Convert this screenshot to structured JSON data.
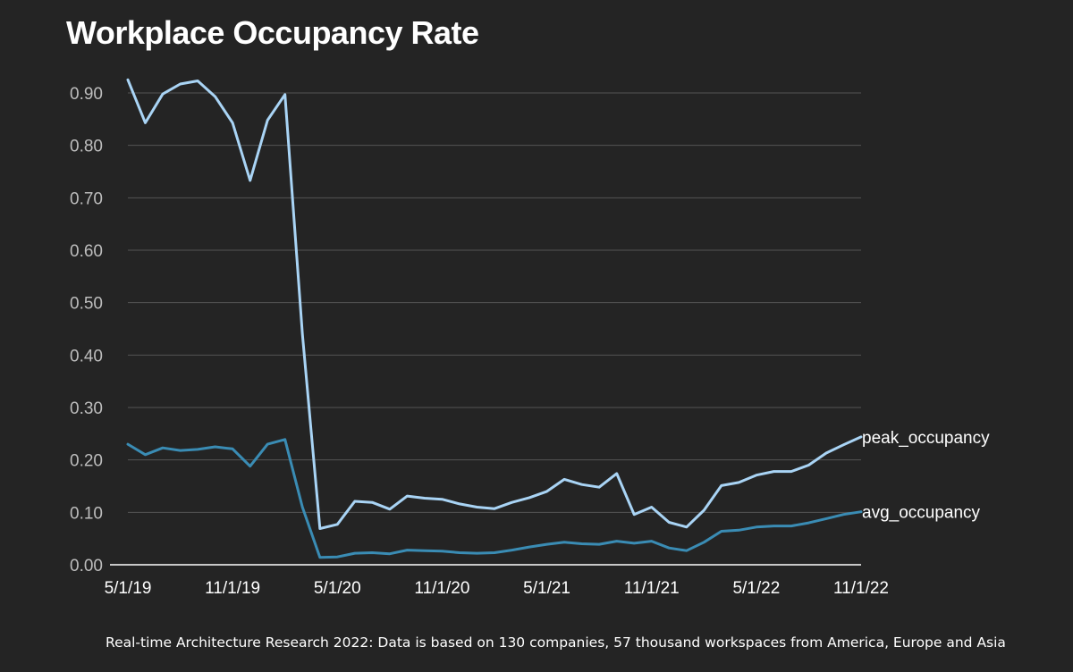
{
  "title": "Workplace Occupancy Rate",
  "source": "Real-time Architecture Research 2022: Data is based on 130 companies, 57 thousand workspaces from America, Europe and Asia",
  "colors": {
    "background": "#242424",
    "peak": "#a9d4f5",
    "avg": "#3a8cb4",
    "grid": "#555555"
  },
  "chart_data": {
    "type": "line",
    "title": "Workplace Occupancy Rate",
    "xlabel": "",
    "ylabel": "",
    "x": [
      "2019-05-01",
      "2019-06-01",
      "2019-07-01",
      "2019-08-01",
      "2019-09-01",
      "2019-10-01",
      "2019-11-01",
      "2019-12-01",
      "2020-01-01",
      "2020-02-01",
      "2020-03-01",
      "2020-04-01",
      "2020-05-01",
      "2020-06-01",
      "2020-07-01",
      "2020-08-01",
      "2020-09-01",
      "2020-10-01",
      "2020-11-01",
      "2020-12-01",
      "2021-01-01",
      "2021-02-01",
      "2021-03-01",
      "2021-04-01",
      "2021-05-01",
      "2021-06-01",
      "2021-07-01",
      "2021-08-01",
      "2021-09-01",
      "2021-10-01",
      "2021-11-01",
      "2021-12-01",
      "2022-01-01",
      "2022-02-01",
      "2022-03-01",
      "2022-04-01",
      "2022-05-01",
      "2022-06-01",
      "2022-07-01",
      "2022-08-01",
      "2022-09-01",
      "2022-10-01",
      "2022-11-01"
    ],
    "x_ticks": [
      "5/1/19",
      "11/1/19",
      "5/1/20",
      "11/1/20",
      "5/1/21",
      "11/1/21",
      "5/1/22",
      "11/1/22"
    ],
    "y_ticks": [
      "0.00",
      "0.10",
      "0.20",
      "0.30",
      "0.40",
      "0.50",
      "0.60",
      "0.70",
      "0.80",
      "0.90"
    ],
    "ylim": [
      0,
      0.9
    ],
    "grid": true,
    "legend": "inline at line ends",
    "series": [
      {
        "name": "peak_occupancy",
        "color": "#a9d4f5",
        "values": [
          0.925,
          0.843,
          0.898,
          0.917,
          0.923,
          0.893,
          0.843,
          0.733,
          0.848,
          0.897,
          0.44,
          0.069,
          0.077,
          0.121,
          0.119,
          0.106,
          0.131,
          0.127,
          0.125,
          0.116,
          0.11,
          0.107,
          0.119,
          0.128,
          0.14,
          0.163,
          0.153,
          0.148,
          0.174,
          0.096,
          0.11,
          0.081,
          0.072,
          0.104,
          0.151,
          0.157,
          0.171,
          0.178,
          0.178,
          0.19,
          0.213,
          0.229,
          0.244
        ]
      },
      {
        "name": "avg_occupancy",
        "color": "#3a8cb4",
        "values": [
          0.23,
          0.21,
          0.223,
          0.218,
          0.22,
          0.225,
          0.221,
          0.188,
          0.23,
          0.239,
          0.11,
          0.014,
          0.015,
          0.022,
          0.023,
          0.021,
          0.028,
          0.027,
          0.026,
          0.023,
          0.022,
          0.023,
          0.028,
          0.034,
          0.039,
          0.043,
          0.04,
          0.039,
          0.045,
          0.041,
          0.045,
          0.032,
          0.027,
          0.043,
          0.064,
          0.066,
          0.072,
          0.074,
          0.074,
          0.08,
          0.088,
          0.096,
          0.101
        ]
      }
    ]
  }
}
